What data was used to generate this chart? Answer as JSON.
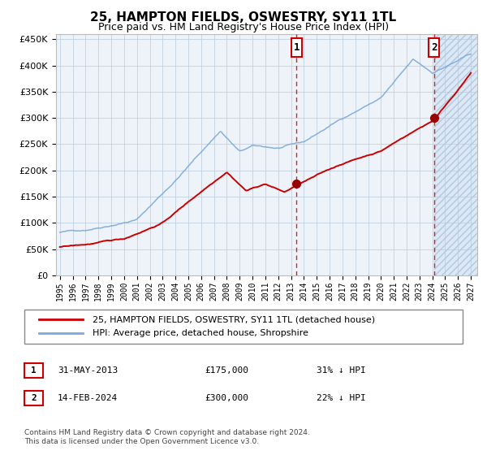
{
  "title": "25, HAMPTON FIELDS, OSWESTRY, SY11 1TL",
  "subtitle": "Price paid vs. HM Land Registry's House Price Index (HPI)",
  "legend_line1": "25, HAMPTON FIELDS, OSWESTRY, SY11 1TL (detached house)",
  "legend_line2": "HPI: Average price, detached house, Shropshire",
  "annotation1_date": "31-MAY-2013",
  "annotation1_price": "£175,000",
  "annotation1_hpi": "31% ↓ HPI",
  "annotation2_date": "14-FEB-2024",
  "annotation2_price": "£300,000",
  "annotation2_hpi": "22% ↓ HPI",
  "footer": "Contains HM Land Registry data © Crown copyright and database right 2024.\nThis data is licensed under the Open Government Licence v3.0.",
  "hpi_color": "#7aaadd",
  "price_color": "#cc0000",
  "marker_color": "#990000",
  "vline_color": "#cc0000",
  "bg_plot": "#eef3fa",
  "bg_future": "#dde8f5",
  "grid_color": "#c0d0e0",
  "annotation_box_color": "#cc0000",
  "ylim_min": 0,
  "ylim_max": 460000,
  "start_year": 1995,
  "end_year": 2027,
  "sale1_year": 2013.42,
  "sale1_value": 175000,
  "sale2_year": 2024.12,
  "sale2_value": 300000
}
